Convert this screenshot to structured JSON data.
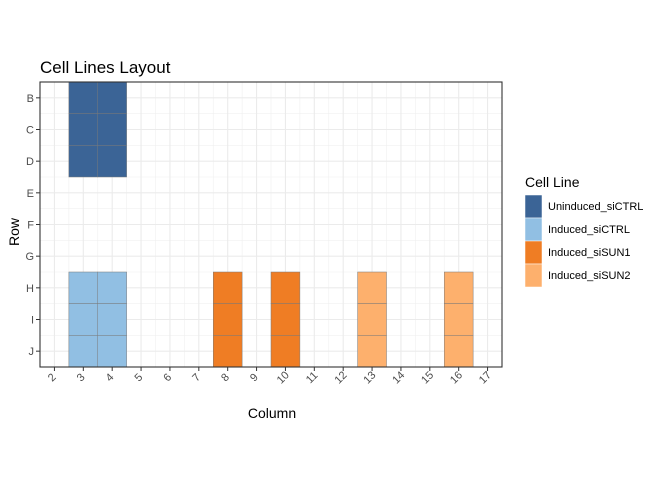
{
  "chart_data": {
    "type": "heatmap",
    "title": "Cell Lines Layout",
    "xlabel": "Column",
    "ylabel": "Row",
    "x_ticks": [
      "2",
      "3",
      "4",
      "5",
      "6",
      "7",
      "8",
      "9",
      "10",
      "11",
      "12",
      "13",
      "14",
      "15",
      "16",
      "17"
    ],
    "y_ticks": [
      "B",
      "C",
      "D",
      "E",
      "F",
      "G",
      "H",
      "I",
      "J"
    ],
    "xlim": [
      2,
      17
    ],
    "grid": true,
    "legend": {
      "title": "Cell Line",
      "placement": "right",
      "items": [
        {
          "label": "Uninduced_siCTRL",
          "color": "#3b6496"
        },
        {
          "label": "Induced_siCTRL",
          "color": "#91bfe3"
        },
        {
          "label": "Induced_siSUN1",
          "color": "#ef7d24"
        },
        {
          "label": "Induced_siSUN2",
          "color": "#fdb06d"
        }
      ]
    },
    "cells": [
      {
        "col": 3,
        "row": "B",
        "line": "Uninduced_siCTRL"
      },
      {
        "col": 4,
        "row": "B",
        "line": "Uninduced_siCTRL"
      },
      {
        "col": 3,
        "row": "C",
        "line": "Uninduced_siCTRL"
      },
      {
        "col": 4,
        "row": "C",
        "line": "Uninduced_siCTRL"
      },
      {
        "col": 3,
        "row": "D",
        "line": "Uninduced_siCTRL"
      },
      {
        "col": 4,
        "row": "D",
        "line": "Uninduced_siCTRL"
      },
      {
        "col": 3,
        "row": "H",
        "line": "Induced_siCTRL"
      },
      {
        "col": 4,
        "row": "H",
        "line": "Induced_siCTRL"
      },
      {
        "col": 3,
        "row": "I",
        "line": "Induced_siCTRL"
      },
      {
        "col": 4,
        "row": "I",
        "line": "Induced_siCTRL"
      },
      {
        "col": 3,
        "row": "J",
        "line": "Induced_siCTRL"
      },
      {
        "col": 4,
        "row": "J",
        "line": "Induced_siCTRL"
      },
      {
        "col": 8,
        "row": "H",
        "line": "Induced_siSUN1"
      },
      {
        "col": 8,
        "row": "I",
        "line": "Induced_siSUN1"
      },
      {
        "col": 8,
        "row": "J",
        "line": "Induced_siSUN1"
      },
      {
        "col": 10,
        "row": "H",
        "line": "Induced_siSUN1"
      },
      {
        "col": 10,
        "row": "I",
        "line": "Induced_siSUN1"
      },
      {
        "col": 10,
        "row": "J",
        "line": "Induced_siSUN1"
      },
      {
        "col": 13,
        "row": "H",
        "line": "Induced_siSUN2"
      },
      {
        "col": 13,
        "row": "I",
        "line": "Induced_siSUN2"
      },
      {
        "col": 13,
        "row": "J",
        "line": "Induced_siSUN2"
      },
      {
        "col": 16,
        "row": "H",
        "line": "Induced_siSUN2"
      },
      {
        "col": 16,
        "row": "I",
        "line": "Induced_siSUN2"
      },
      {
        "col": 16,
        "row": "J",
        "line": "Induced_siSUN2"
      }
    ]
  }
}
